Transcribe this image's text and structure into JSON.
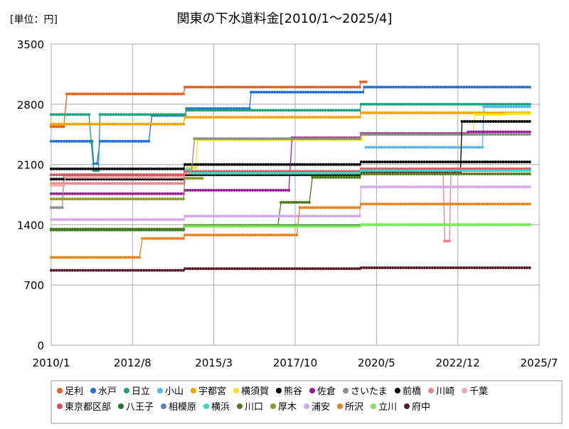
{
  "chart_data": {
    "type": "line",
    "title": "関東の下水道料金[2010/1～2025/4]",
    "unit_label": "[単位：円]",
    "xlabel": "",
    "ylabel": "",
    "ylim": [
      0,
      3500
    ],
    "yticks": [
      0,
      700,
      1400,
      2100,
      2800,
      3500
    ],
    "xlim": [
      2010.0,
      2025.5
    ],
    "xticks": [
      {
        "label": "2010/1",
        "value": 2010.0
      },
      {
        "label": "2012/8",
        "value": 2012.583
      },
      {
        "label": "2015/3",
        "value": 2015.167
      },
      {
        "label": "2017/10",
        "value": 2017.75
      },
      {
        "label": "2020/5",
        "value": 2020.333
      },
      {
        "label": "2022/12",
        "value": 2022.917
      },
      {
        "label": "2025/7",
        "value": 2025.5
      }
    ],
    "grid": true,
    "legend_position": "bottom",
    "series": [
      {
        "name": "足利",
        "color": "#e8611c",
        "points": [
          [
            2010.0,
            2540
          ],
          [
            2010.4,
            2540
          ],
          [
            2010.5,
            2920
          ],
          [
            2014.2,
            2920
          ],
          [
            2014.25,
            3000
          ],
          [
            2019.8,
            3000
          ],
          [
            2019.83,
            3060
          ],
          [
            2020.0,
            3060
          ]
        ]
      },
      {
        "name": "水戸",
        "color": "#1f6fdc",
        "points": [
          [
            2010.0,
            2370
          ],
          [
            2011.3,
            2370
          ],
          [
            2011.35,
            2110
          ],
          [
            2011.45,
            2110
          ],
          [
            2011.55,
            2370
          ],
          [
            2013.1,
            2370
          ],
          [
            2013.2,
            2670
          ],
          [
            2014.25,
            2670
          ],
          [
            2014.3,
            2750
          ],
          [
            2016.3,
            2750
          ],
          [
            2016.35,
            2940
          ],
          [
            2019.9,
            2940
          ],
          [
            2019.95,
            3000
          ],
          [
            2025.2,
            3000
          ]
        ]
      },
      {
        "name": "日立",
        "color": "#1aa37a",
        "points": [
          [
            2010.0,
            2680
          ],
          [
            2011.2,
            2680
          ],
          [
            2011.35,
            2030
          ],
          [
            2011.5,
            2030
          ],
          [
            2011.55,
            2680
          ],
          [
            2014.25,
            2680
          ],
          [
            2014.3,
            2730
          ],
          [
            2019.8,
            2730
          ],
          [
            2019.85,
            2800
          ],
          [
            2025.2,
            2800
          ]
        ]
      },
      {
        "name": "小山",
        "color": "#55b8ea",
        "points": [
          [
            2020.0,
            2300
          ],
          [
            2023.7,
            2300
          ],
          [
            2023.75,
            2770
          ],
          [
            2025.2,
            2770
          ]
        ]
      },
      {
        "name": "宇都宮",
        "color": "#f0a500",
        "points": [
          [
            2010.0,
            2570
          ],
          [
            2014.2,
            2570
          ],
          [
            2014.25,
            2650
          ],
          [
            2019.8,
            2650
          ],
          [
            2019.85,
            2700
          ],
          [
            2025.2,
            2700
          ]
        ]
      },
      {
        "name": "横須賀",
        "color": "#f5e61a",
        "points": [
          [
            2014.3,
            2060
          ],
          [
            2014.6,
            2060
          ],
          [
            2014.65,
            2390
          ],
          [
            2019.85,
            2390
          ],
          [
            2019.9,
            2450
          ],
          [
            2023.4,
            2450
          ],
          [
            2023.45,
            2680
          ],
          [
            2024.4,
            2680
          ],
          [
            2024.45,
            2690
          ],
          [
            2025.2,
            2690
          ]
        ]
      },
      {
        "name": "熊谷",
        "color": "#000000",
        "points": [
          [
            2010.0,
            2050
          ],
          [
            2014.2,
            2050
          ],
          [
            2014.25,
            2100
          ],
          [
            2019.8,
            2100
          ],
          [
            2019.85,
            2130
          ],
          [
            2025.2,
            2130
          ]
        ]
      },
      {
        "name": "佐倉",
        "color": "#9b1c9b",
        "points": [
          [
            2010.0,
            1760
          ],
          [
            2014.2,
            1760
          ],
          [
            2014.25,
            1800
          ],
          [
            2017.55,
            1800
          ],
          [
            2017.65,
            2410
          ],
          [
            2019.8,
            2410
          ],
          [
            2019.85,
            2460
          ],
          [
            2023.2,
            2460
          ],
          [
            2023.25,
            2480
          ],
          [
            2025.2,
            2480
          ]
        ]
      },
      {
        "name": "さいたま",
        "color": "#8c8c8c",
        "points": [
          [
            2010.0,
            1600
          ],
          [
            2010.35,
            1600
          ],
          [
            2010.4,
            1980
          ],
          [
            2014.45,
            1980
          ],
          [
            2014.55,
            2400
          ],
          [
            2019.8,
            2400
          ],
          [
            2019.85,
            2450
          ],
          [
            2025.2,
            2450
          ]
        ]
      },
      {
        "name": "前橋",
        "color": "#000000",
        "points": [
          [
            2010.0,
            1930
          ],
          [
            2014.2,
            1930
          ],
          [
            2014.25,
            1980
          ],
          [
            2019.8,
            1980
          ],
          [
            2019.85,
            2020
          ],
          [
            2023.0,
            2020
          ],
          [
            2023.05,
            2600
          ],
          [
            2025.2,
            2600
          ]
        ]
      },
      {
        "name": "川崎",
        "color": "#f0818a",
        "points": [
          [
            2010.0,
            1880
          ],
          [
            2014.2,
            1880
          ],
          [
            2014.25,
            2010
          ],
          [
            2019.8,
            2010
          ],
          [
            2019.85,
            2050
          ],
          [
            2022.45,
            2050
          ],
          [
            2022.5,
            1210
          ],
          [
            2022.65,
            1210
          ],
          [
            2022.7,
            2050
          ],
          [
            2025.2,
            2050
          ]
        ]
      },
      {
        "name": "千葉",
        "color": "#f4a8a8",
        "points": [
          [
            2010.0,
            1860
          ],
          [
            2010.4,
            1860
          ],
          [
            2010.45,
            1950
          ],
          [
            2014.2,
            1950
          ],
          [
            2014.25,
            2000
          ],
          [
            2019.8,
            2000
          ],
          [
            2019.85,
            2040
          ],
          [
            2025.2,
            2040
          ]
        ]
      },
      {
        "name": "東京都区部",
        "color": "#d9535e",
        "points": [
          [
            2010.0,
            1980
          ],
          [
            2014.2,
            1980
          ],
          [
            2014.25,
            2020
          ],
          [
            2019.8,
            2020
          ],
          [
            2019.85,
            2050
          ],
          [
            2025.2,
            2050
          ]
        ]
      },
      {
        "name": "八王子",
        "color": "#1a7a2e",
        "points": [
          [
            2010.0,
            1340
          ],
          [
            2014.2,
            1340
          ],
          [
            2014.25,
            1390
          ],
          [
            2019.8,
            1390
          ],
          [
            2019.85,
            1400
          ],
          [
            2025.2,
            1400
          ]
        ]
      },
      {
        "name": "相模原",
        "color": "#5a84b8",
        "points": [
          [
            2019.9,
            2030
          ],
          [
            2025.2,
            2030
          ]
        ]
      },
      {
        "name": "横浜",
        "color": "#35dcc0",
        "points": [
          [
            2014.3,
            2040
          ],
          [
            2014.4,
            2040
          ],
          [
            2014.45,
            2000
          ],
          [
            2019.8,
            2000
          ],
          [
            2019.85,
            2030
          ],
          [
            2025.2,
            2030
          ]
        ]
      },
      {
        "name": "川口",
        "color": "#4e7a18",
        "points": [
          [
            2010.0,
            1350
          ],
          [
            2014.2,
            1350
          ],
          [
            2014.25,
            1390
          ],
          [
            2017.2,
            1390
          ],
          [
            2017.3,
            1660
          ],
          [
            2018.2,
            1660
          ],
          [
            2018.3,
            1950
          ],
          [
            2019.8,
            1950
          ],
          [
            2019.85,
            1990
          ],
          [
            2025.2,
            1990
          ]
        ]
      },
      {
        "name": "厚木",
        "color": "#8a9a2a",
        "points": [
          [
            2010.0,
            1700
          ],
          [
            2014.2,
            1700
          ],
          [
            2014.25,
            1940
          ],
          [
            2014.8,
            1940
          ]
        ]
      },
      {
        "name": "浦安",
        "color": "#d6a6e8",
        "points": [
          [
            2010.0,
            1460
          ],
          [
            2014.2,
            1460
          ],
          [
            2014.25,
            1500
          ],
          [
            2019.8,
            1500
          ],
          [
            2019.85,
            1840
          ],
          [
            2025.2,
            1840
          ]
        ]
      },
      {
        "name": "所沢",
        "color": "#e8821a",
        "points": [
          [
            2010.0,
            1020
          ],
          [
            2012.8,
            1020
          ],
          [
            2012.9,
            1240
          ],
          [
            2014.2,
            1240
          ],
          [
            2014.25,
            1280
          ],
          [
            2017.8,
            1280
          ],
          [
            2017.9,
            1600
          ],
          [
            2019.8,
            1600
          ],
          [
            2019.85,
            1640
          ],
          [
            2025.2,
            1640
          ]
        ]
      },
      {
        "name": "立川",
        "color": "#7ee85a",
        "points": [
          [
            2014.25,
            1380
          ],
          [
            2019.8,
            1380
          ],
          [
            2019.85,
            1400
          ],
          [
            2025.2,
            1400
          ]
        ]
      },
      {
        "name": "府中",
        "color": "#5a1a2a",
        "points": [
          [
            2010.0,
            870
          ],
          [
            2014.2,
            870
          ],
          [
            2014.25,
            890
          ],
          [
            2019.8,
            890
          ],
          [
            2019.85,
            900
          ],
          [
            2025.2,
            900
          ]
        ]
      }
    ]
  }
}
